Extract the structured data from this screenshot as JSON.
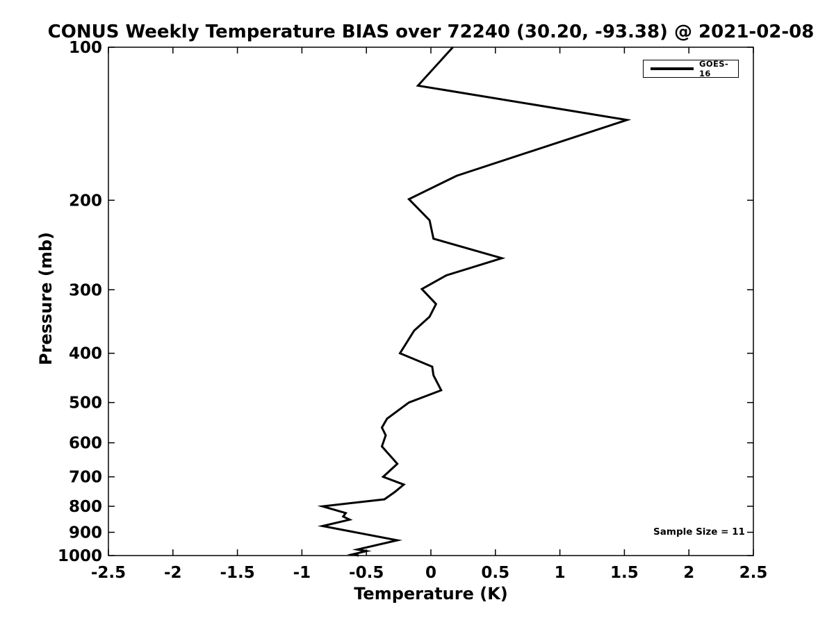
{
  "chart_data": {
    "type": "line",
    "title": "CONUS Weekly Temperature BIAS over 72240 (30.20, -93.38) @ 2021-02-08",
    "xlabel": "Temperature (K)",
    "ylabel": "Pressure (mb)",
    "xlim": [
      -2.5,
      2.5
    ],
    "ylim_bottom_top": [
      1000,
      100
    ],
    "yscale": "log",
    "grid": false,
    "x_tick_labels": [
      "-2.5",
      "-2",
      "-1.5",
      "-1",
      "-0.5",
      "0",
      "0.5",
      "1",
      "1.5",
      "2",
      "2.5"
    ],
    "y_tick_labels": [
      "100",
      "200",
      "300",
      "400",
      "500",
      "600",
      "700",
      "800",
      "900",
      "1000"
    ],
    "legend_position": "upper right",
    "annotations": [
      "Sample Size = 11"
    ],
    "line_color": "#000000",
    "series": [
      {
        "name": "GOES-16",
        "color": "#000000",
        "line_width": 3,
        "points_t_p": [
          [
            0.17,
            100
          ],
          [
            -0.1,
            119
          ],
          [
            1.52,
            139
          ],
          [
            0.2,
            179
          ],
          [
            -0.17,
            199
          ],
          [
            -0.01,
            219
          ],
          [
            0.02,
            238
          ],
          [
            0.55,
            260
          ],
          [
            0.12,
            281
          ],
          [
            -0.07,
            299
          ],
          [
            0.04,
            320
          ],
          [
            -0.01,
            339
          ],
          [
            -0.13,
            361
          ],
          [
            -0.24,
            400
          ],
          [
            0.01,
            425
          ],
          [
            0.02,
            442
          ],
          [
            0.08,
            473
          ],
          [
            -0.17,
            500
          ],
          [
            -0.34,
            538
          ],
          [
            -0.38,
            560
          ],
          [
            -0.35,
            580
          ],
          [
            -0.38,
            610
          ],
          [
            -0.26,
            660
          ],
          [
            -0.37,
            700
          ],
          [
            -0.21,
            725
          ],
          [
            -0.28,
            750
          ],
          [
            -0.36,
            775
          ],
          [
            -0.84,
            800
          ],
          [
            -0.66,
            825
          ],
          [
            -0.68,
            838
          ],
          [
            -0.63,
            850
          ],
          [
            -0.84,
            875
          ],
          [
            -0.26,
            933
          ],
          [
            -0.57,
            973
          ],
          [
            -0.5,
            980
          ],
          [
            -0.61,
            995
          ],
          [
            -0.56,
            1000
          ]
        ]
      }
    ]
  }
}
